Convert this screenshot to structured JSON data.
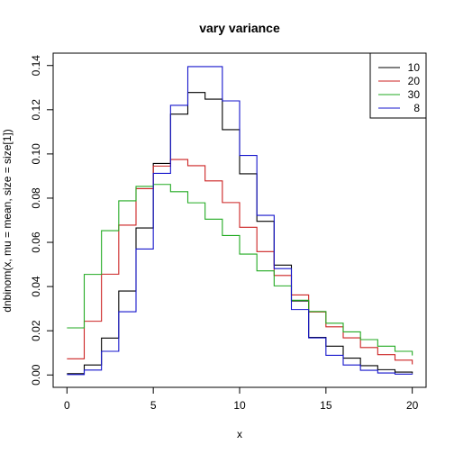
{
  "chart_data": {
    "type": "line",
    "step": true,
    "title": "vary variance",
    "xlabel": "x",
    "ylabel": "dnbinom(x, mu = mean, size = size[1])",
    "xlim": [
      -0.8,
      20.8
    ],
    "ylim": [
      -0.0056,
      0.1456
    ],
    "x_ticks": [
      0,
      5,
      10,
      15,
      20
    ],
    "x_tick_labels": [
      "0",
      "5",
      "10",
      "15",
      "20"
    ],
    "y_ticks": [
      0.0,
      0.02,
      0.04,
      0.06,
      0.08,
      0.1,
      0.12,
      0.14
    ],
    "y_tick_labels": [
      "0.00",
      "0.02",
      "0.04",
      "0.06",
      "0.08",
      "0.10",
      "0.12",
      "0.14"
    ],
    "grid": false,
    "legend_position": "top-right",
    "x": [
      0,
      1,
      2,
      3,
      4,
      5,
      6,
      7,
      8,
      9,
      10,
      11,
      12,
      13,
      14,
      15,
      16,
      17,
      18,
      19,
      20
    ],
    "series": [
      {
        "name": "10",
        "color": "#000000",
        "values": [
          0.0006,
          0.0045,
          0.0167,
          0.038,
          0.0665,
          0.0957,
          0.118,
          0.1278,
          0.1248,
          0.111,
          0.091,
          0.0695,
          0.0497,
          0.0335,
          0.017,
          0.013,
          0.0076,
          0.0042,
          0.0024,
          0.0013,
          0.0007
        ]
      },
      {
        "name": "20",
        "color": "#cc2222",
        "values": [
          0.0073,
          0.0243,
          0.0456,
          0.0678,
          0.0843,
          0.0945,
          0.0975,
          0.0947,
          0.0878,
          0.078,
          0.0668,
          0.0558,
          0.045,
          0.0362,
          0.0285,
          0.0218,
          0.0168,
          0.0124,
          0.0092,
          0.0067,
          0.0048
        ]
      },
      {
        "name": "30",
        "color": "#22aa22",
        "values": [
          0.0213,
          0.0455,
          0.0653,
          0.0788,
          0.0853,
          0.0862,
          0.0829,
          0.0779,
          0.0705,
          0.0631,
          0.0547,
          0.0471,
          0.0403,
          0.0338,
          0.0287,
          0.0234,
          0.0195,
          0.016,
          0.013,
          0.0107,
          0.0088
        ]
      },
      {
        "name": "8",
        "color": "#1515cc",
        "values": [
          0.0002,
          0.0022,
          0.0107,
          0.0286,
          0.057,
          0.0912,
          0.122,
          0.1395,
          0.1395,
          0.124,
          0.0993,
          0.0722,
          0.0481,
          0.0296,
          0.0168,
          0.0089,
          0.0045,
          0.0021,
          0.0009,
          0.0004,
          0.0002
        ]
      }
    ]
  }
}
